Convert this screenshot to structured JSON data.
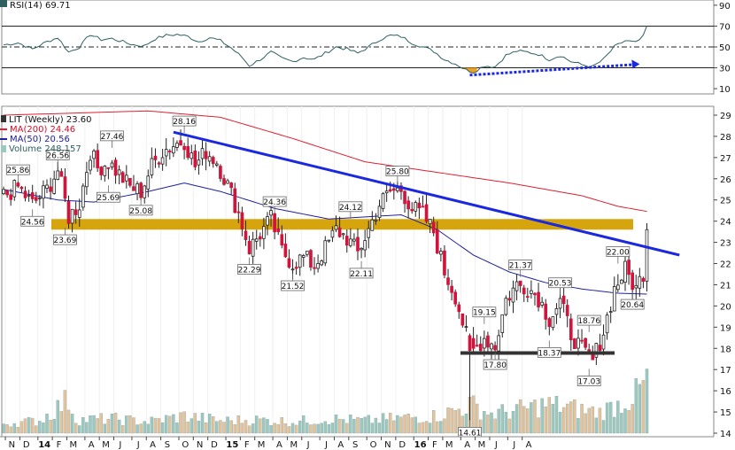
{
  "chart_data": {
    "type": "candlestick",
    "colors": {
      "up": "#ffffff",
      "down": "#d2143c",
      "ma200": "#e02030",
      "ma50": "#2020a0",
      "volume_up": "#9cc8c0",
      "volume_down": "#e6c29a",
      "trendline": "#1a28e0",
      "zone": "#d4a000",
      "support": "#333333",
      "rsi_line": "#2f6060",
      "rsi_trend": "#1a28e0",
      "rsi_fill": "#f0a020"
    },
    "rsi_panel": {
      "legend": "RSI(14) 69.71",
      "ticks": [
        "90",
        "70",
        "50",
        "30",
        "10"
      ],
      "levels": [
        70,
        50,
        30
      ],
      "range": [
        5,
        95
      ]
    },
    "price_panel": {
      "legend": {
        "title": "LIT (Weekly) 23.60",
        "ma200": "MA(200) 24.46",
        "ma50": "MA(50) 20.56",
        "volume": "Volume 248,157"
      },
      "ticks": [
        "29",
        "28",
        "27",
        "26",
        "25",
        "24",
        "23",
        "22",
        "21",
        "20",
        "19",
        "18",
        "17",
        "16",
        "15",
        "14"
      ],
      "range": [
        14,
        29
      ],
      "zone": [
        23.6,
        24.1
      ],
      "support": 17.78,
      "trendline": [
        {
          "week": 47,
          "value": 28.2
        },
        {
          "week": 187,
          "value": 22.4
        }
      ],
      "price_labels": [
        {
          "text": "25.86",
          "week": 4,
          "value": 25.86,
          "pos": "above"
        },
        {
          "text": "24.56",
          "week": 8,
          "value": 24.56,
          "pos": "below"
        },
        {
          "text": "26.56",
          "week": 15,
          "value": 26.56,
          "pos": "above"
        },
        {
          "text": "23.69",
          "week": 17,
          "value": 23.69,
          "pos": "below"
        },
        {
          "text": "27.46",
          "week": 30,
          "value": 27.46,
          "pos": "above"
        },
        {
          "text": "25.69",
          "week": 29,
          "value": 25.69,
          "pos": "below"
        },
        {
          "text": "25.08",
          "week": 38,
          "value": 25.08,
          "pos": "below"
        },
        {
          "text": "28.16",
          "week": 50,
          "value": 28.16,
          "pos": "above"
        },
        {
          "text": "22.29",
          "week": 68,
          "value": 22.29,
          "pos": "below"
        },
        {
          "text": "24.36",
          "week": 75,
          "value": 24.36,
          "pos": "above"
        },
        {
          "text": "21.52",
          "week": 80,
          "value": 21.52,
          "pos": "below"
        },
        {
          "text": "24.12",
          "week": 96,
          "value": 24.12,
          "pos": "above"
        },
        {
          "text": "22.11",
          "week": 99,
          "value": 22.11,
          "pos": "below"
        },
        {
          "text": "25.80",
          "week": 109,
          "value": 25.8,
          "pos": "above"
        },
        {
          "text": "14.61",
          "week": 129,
          "value": 14.61,
          "pos": "below"
        },
        {
          "text": "19.15",
          "week": 133,
          "value": 19.15,
          "pos": "above"
        },
        {
          "text": "17.80",
          "week": 136,
          "value": 17.8,
          "pos": "below"
        },
        {
          "text": "21.37",
          "week": 143,
          "value": 21.37,
          "pos": "above"
        },
        {
          "text": "20.53",
          "week": 154,
          "value": 20.53,
          "pos": "above"
        },
        {
          "text": "18.37",
          "week": 151,
          "value": 18.37,
          "pos": "below"
        },
        {
          "text": "18.76",
          "week": 162,
          "value": 18.76,
          "pos": "above"
        },
        {
          "text": "17.03",
          "week": 162,
          "value": 17.03,
          "pos": "below"
        },
        {
          "text": "22.00",
          "week": 170,
          "value": 22.0,
          "pos": "above"
        },
        {
          "text": "20.64",
          "week": 174,
          "value": 20.64,
          "pos": "below"
        }
      ]
    },
    "x_axis": {
      "weeks": 197,
      "months": [
        {
          "text": "N",
          "week": 1
        },
        {
          "text": "D",
          "week": 5
        },
        {
          "text": "14",
          "week": 10,
          "year": true
        },
        {
          "text": "F",
          "week": 14
        },
        {
          "text": "M",
          "week": 18
        },
        {
          "text": "A",
          "week": 23
        },
        {
          "text": "M",
          "week": 27
        },
        {
          "text": "J",
          "week": 31
        },
        {
          "text": "J",
          "week": 36
        },
        {
          "text": "A",
          "week": 40
        },
        {
          "text": "S",
          "week": 44
        },
        {
          "text": "O",
          "week": 49
        },
        {
          "text": "N",
          "week": 53
        },
        {
          "text": "D",
          "week": 57
        },
        {
          "text": "15",
          "week": 62,
          "year": true
        },
        {
          "text": "F",
          "week": 66
        },
        {
          "text": "M",
          "week": 70
        },
        {
          "text": "A",
          "week": 75
        },
        {
          "text": "M",
          "week": 79
        },
        {
          "text": "J",
          "week": 83
        },
        {
          "text": "J",
          "week": 88
        },
        {
          "text": "A",
          "week": 92
        },
        {
          "text": "S",
          "week": 96
        },
        {
          "text": "O",
          "week": 101
        },
        {
          "text": "N",
          "week": 105
        },
        {
          "text": "D",
          "week": 109
        },
        {
          "text": "16",
          "week": 114,
          "year": true
        },
        {
          "text": "F",
          "week": 118
        },
        {
          "text": "M",
          "week": 122
        },
        {
          "text": "A",
          "week": 127
        },
        {
          "text": "M",
          "week": 131
        },
        {
          "text": "J",
          "week": 135
        },
        {
          "text": "J",
          "week": 140
        },
        {
          "text": "A",
          "week": 144
        }
      ]
    },
    "anchors": {
      "close": [
        [
          0,
          25.2
        ],
        [
          4,
          25.6
        ],
        [
          8,
          24.8
        ],
        [
          12,
          25.5
        ],
        [
          15,
          26.4
        ],
        [
          18,
          24.2
        ],
        [
          21,
          24.8
        ],
        [
          24,
          27.3
        ],
        [
          26,
          26.5
        ],
        [
          29,
          26.8
        ],
        [
          32,
          26.2
        ],
        [
          35,
          25.6
        ],
        [
          38,
          25.4
        ],
        [
          41,
          26.6
        ],
        [
          44,
          27.3
        ],
        [
          47,
          27.6
        ],
        [
          50,
          27.8
        ],
        [
          53,
          26.6
        ],
        [
          56,
          27.3
        ],
        [
          59,
          26.8
        ],
        [
          62,
          25.7
        ],
        [
          65,
          24.4
        ],
        [
          68,
          22.7
        ],
        [
          71,
          23.4
        ],
        [
          74,
          24.1
        ],
        [
          77,
          22.6
        ],
        [
          80,
          22.0
        ],
        [
          83,
          22.3
        ],
        [
          86,
          21.9
        ],
        [
          89,
          22.7
        ],
        [
          92,
          23.6
        ],
        [
          95,
          23.2
        ],
        [
          98,
          22.5
        ],
        [
          101,
          23.6
        ],
        [
          104,
          24.8
        ],
        [
          107,
          25.4
        ],
        [
          110,
          25.5
        ],
        [
          113,
          24.6
        ],
        [
          116,
          24.3
        ],
        [
          119,
          23.5
        ],
        [
          122,
          21.6
        ],
        [
          125,
          20.5
        ],
        [
          128,
          18.6
        ],
        [
          130,
          17.9
        ],
        [
          133,
          18.5
        ],
        [
          136,
          18.1
        ],
        [
          139,
          20.3
        ],
        [
          142,
          21.0
        ],
        [
          145,
          20.9
        ],
        [
          148,
          20.4
        ],
        [
          151,
          19.4
        ],
        [
          154,
          20.2
        ],
        [
          157,
          18.7
        ],
        [
          160,
          17.9
        ],
        [
          163,
          17.4
        ],
        [
          166,
          18.8
        ],
        [
          169,
          20.8
        ],
        [
          172,
          21.7
        ],
        [
          175,
          20.8
        ],
        [
          177,
          21.6
        ],
        [
          178,
          23.6
        ]
      ],
      "ma200": [
        [
          0,
          29.0
        ],
        [
          40,
          29.2
        ],
        [
          60,
          28.9
        ],
        [
          80,
          27.9
        ],
        [
          100,
          26.8
        ],
        [
          120,
          26.3
        ],
        [
          140,
          25.8
        ],
        [
          160,
          25.2
        ],
        [
          170,
          24.7
        ],
        [
          178,
          24.46
        ]
      ],
      "ma50": [
        [
          0,
          25.5
        ],
        [
          15,
          25.0
        ],
        [
          25,
          24.9
        ],
        [
          40,
          25.4
        ],
        [
          50,
          25.8
        ],
        [
          60,
          25.4
        ],
        [
          75,
          24.6
        ],
        [
          90,
          24.1
        ],
        [
          100,
          24.2
        ],
        [
          110,
          24.3
        ],
        [
          120,
          23.6
        ],
        [
          130,
          22.4
        ],
        [
          140,
          21.6
        ],
        [
          150,
          21.1
        ],
        [
          160,
          20.8
        ],
        [
          170,
          20.6
        ],
        [
          178,
          20.56
        ]
      ],
      "rsi": [
        [
          0,
          52
        ],
        [
          4,
          54
        ],
        [
          8,
          48
        ],
        [
          12,
          55
        ],
        [
          15,
          59
        ],
        [
          18,
          45
        ],
        [
          21,
          50
        ],
        [
          24,
          62
        ],
        [
          27,
          57
        ],
        [
          30,
          58
        ],
        [
          33,
          55
        ],
        [
          36,
          52
        ],
        [
          39,
          51
        ],
        [
          42,
          58
        ],
        [
          45,
          61
        ],
        [
          48,
          62
        ],
        [
          51,
          60
        ],
        [
          54,
          55
        ],
        [
          57,
          59
        ],
        [
          60,
          56
        ],
        [
          63,
          49
        ],
        [
          66,
          40
        ],
        [
          68,
          32
        ],
        [
          71,
          38
        ],
        [
          74,
          45
        ],
        [
          77,
          39
        ],
        [
          80,
          36
        ],
        [
          83,
          40
        ],
        [
          86,
          38
        ],
        [
          89,
          44
        ],
        [
          92,
          50
        ],
        [
          95,
          48
        ],
        [
          98,
          44
        ],
        [
          101,
          50
        ],
        [
          104,
          57
        ],
        [
          107,
          61
        ],
        [
          110,
          60
        ],
        [
          113,
          54
        ],
        [
          116,
          50
        ],
        [
          119,
          46
        ],
        [
          122,
          38
        ],
        [
          125,
          34
        ],
        [
          128,
          28
        ],
        [
          130,
          26
        ],
        [
          133,
          32
        ],
        [
          136,
          31
        ],
        [
          139,
          42
        ],
        [
          142,
          46
        ],
        [
          145,
          45
        ],
        [
          148,
          43
        ],
        [
          151,
          38
        ],
        [
          154,
          42
        ],
        [
          157,
          36
        ],
        [
          160,
          33
        ],
        [
          163,
          31
        ],
        [
          166,
          38
        ],
        [
          169,
          50
        ],
        [
          172,
          56
        ],
        [
          175,
          54
        ],
        [
          177,
          60
        ],
        [
          178,
          69.71
        ]
      ],
      "volume_factor": [
        [
          0,
          1.0
        ],
        [
          10,
          1.3
        ],
        [
          18,
          3.5
        ],
        [
          20,
          1.4
        ],
        [
          30,
          1.5
        ],
        [
          40,
          1.2
        ],
        [
          50,
          1.8
        ],
        [
          60,
          1.3
        ],
        [
          70,
          1.4
        ],
        [
          80,
          1.2
        ],
        [
          90,
          1.5
        ],
        [
          100,
          1.3
        ],
        [
          110,
          1.6
        ],
        [
          120,
          1.8
        ],
        [
          126,
          2.5
        ],
        [
          129,
          3.0
        ],
        [
          135,
          2.0
        ],
        [
          145,
          2.6
        ],
        [
          150,
          3.0
        ],
        [
          155,
          2.8
        ],
        [
          160,
          2.4
        ],
        [
          165,
          2.2
        ],
        [
          170,
          3.0
        ],
        [
          175,
          4.0
        ],
        [
          178,
          5.5
        ]
      ]
    },
    "special_candles": [
      {
        "week": 129,
        "open": 18.6,
        "close": 17.9,
        "high": 18.7,
        "low": 14.61
      }
    ]
  }
}
